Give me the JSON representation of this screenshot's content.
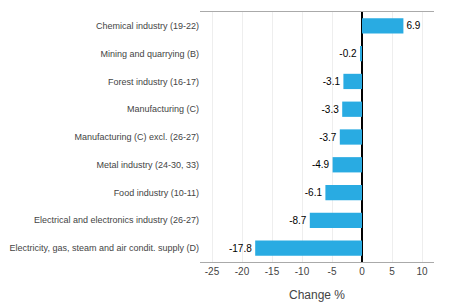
{
  "chart_data": {
    "type": "bar",
    "orientation": "horizontal",
    "categories": [
      "Electricity, gas, steam and air condit. supply (D)",
      "Electrical and electronics industry (26-27)",
      "Food industry (10-11)",
      "Metal industry (24-30, 33)",
      "Manufacturing (C) excl. (26-27)",
      "Manufacturing (C)",
      "Forest industry (16-17)",
      "Mining and quarrying (B)",
      "Chemical industry (19-22)"
    ],
    "values": [
      -17.8,
      -8.7,
      -6.1,
      -4.9,
      -3.7,
      -3.3,
      -3.1,
      -0.2,
      6.9
    ],
    "color": "#29abe2",
    "xlabel": "Change %",
    "xlim": [
      -27,
      12
    ],
    "xticks": [
      -25,
      -20,
      -15,
      -10,
      -5,
      0,
      5,
      10
    ],
    "grid": true,
    "data_labels": true
  }
}
